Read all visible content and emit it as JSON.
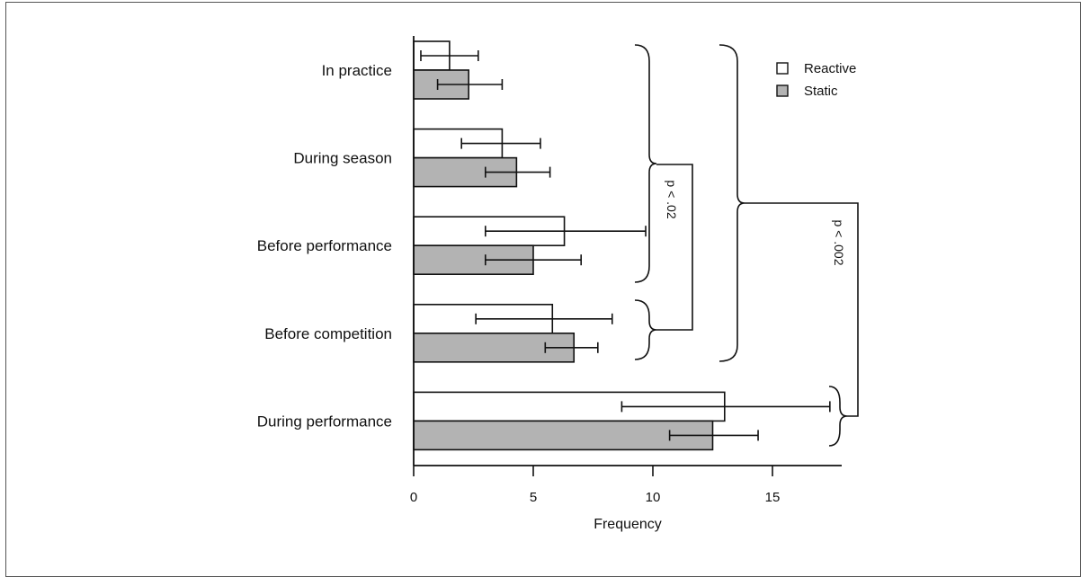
{
  "chart_data": {
    "type": "bar",
    "orientation": "horizontal",
    "categories": [
      "In practice",
      "During season",
      "Before performance",
      "Before competition",
      "During performance"
    ],
    "series": [
      {
        "name": "Reactive",
        "color": "#ffffff",
        "values": [
          1.5,
          3.7,
          6.3,
          5.8,
          13.0
        ],
        "error_low": [
          0.3,
          2.0,
          3.0,
          2.6,
          8.7
        ],
        "error_high": [
          2.7,
          5.3,
          9.7,
          8.3,
          17.4
        ]
      },
      {
        "name": "Static",
        "color": "#b3b3b3",
        "values": [
          2.3,
          4.3,
          5.0,
          6.7,
          12.5
        ],
        "error_low": [
          1.0,
          3.0,
          3.0,
          5.5,
          10.7
        ],
        "error_high": [
          3.7,
          5.7,
          7.0,
          7.7,
          14.4
        ]
      }
    ],
    "xlabel": "Frequency",
    "xlim": [
      0,
      18
    ],
    "xticks": [
      0,
      5,
      10,
      15
    ],
    "legend_position": "top-right",
    "significance": [
      {
        "label": "p < .02",
        "groups": [
          [
            "In practice",
            "During season",
            "Before performance"
          ],
          [
            "Before competition"
          ]
        ]
      },
      {
        "label": "p < .002",
        "groups": [
          [
            "In practice",
            "During season",
            "Before performance",
            "Before competition"
          ],
          [
            "During performance"
          ]
        ]
      }
    ]
  }
}
